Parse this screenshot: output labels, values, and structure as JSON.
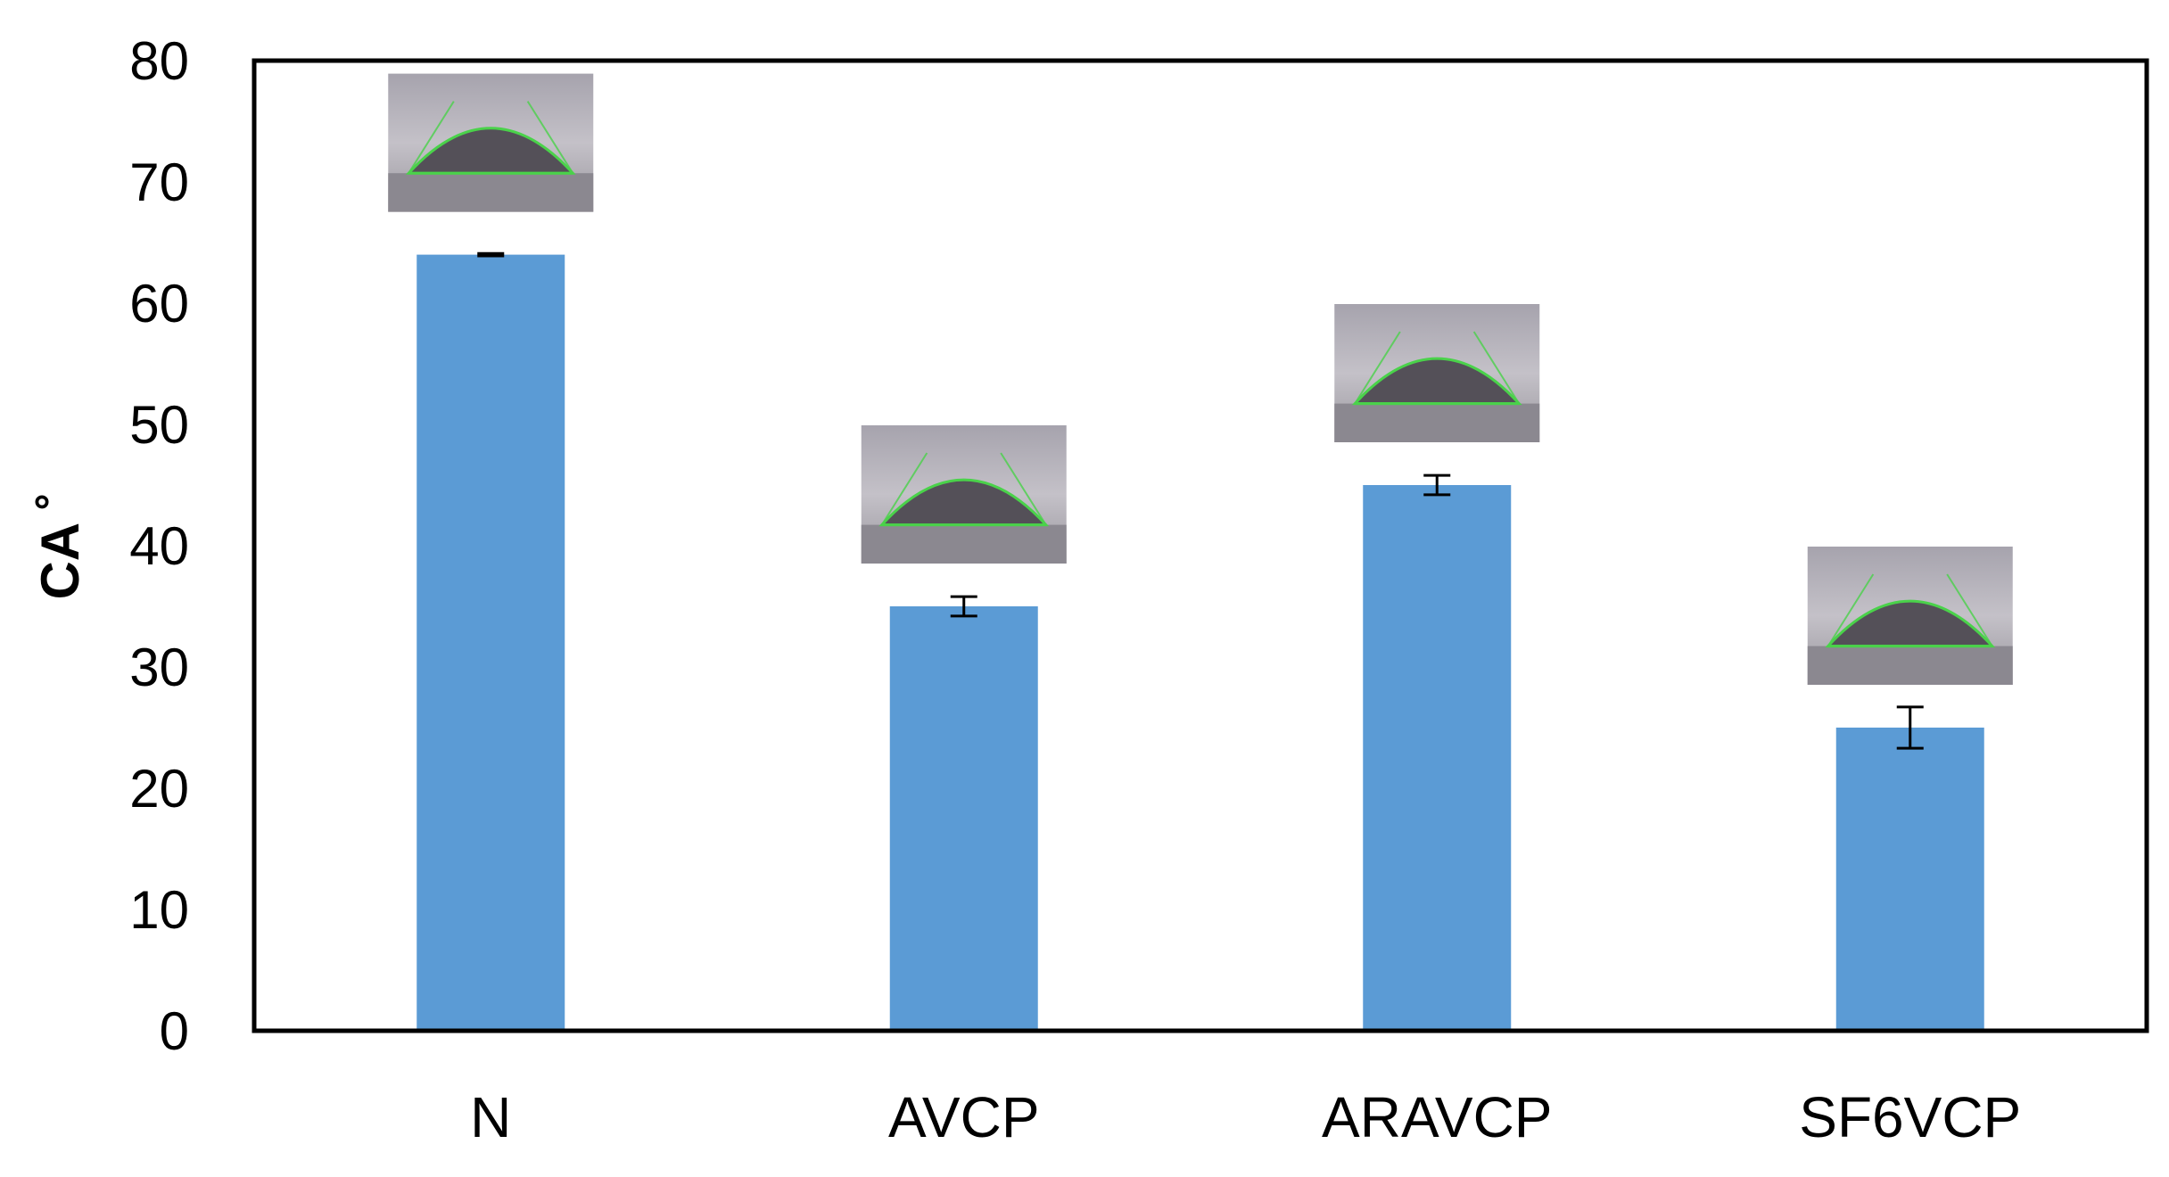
{
  "chart_data": {
    "type": "bar",
    "categories": [
      "N",
      "AVCP",
      "ARAVCP",
      "SF6VCP"
    ],
    "values": [
      64,
      35,
      45,
      25
    ],
    "errors": [
      0.1,
      0.8,
      0.8,
      1.7
    ],
    "ylabel": "CA ˚",
    "xlabel": "",
    "ylim": [
      0,
      80
    ],
    "yticks": [
      0,
      10,
      20,
      30,
      40,
      50,
      60,
      70,
      80
    ],
    "grid": false,
    "legend": "none",
    "bar_color": "#5b9bd5",
    "insets": [
      "droplet-photo",
      "droplet-photo",
      "droplet-photo",
      "droplet-photo"
    ]
  }
}
